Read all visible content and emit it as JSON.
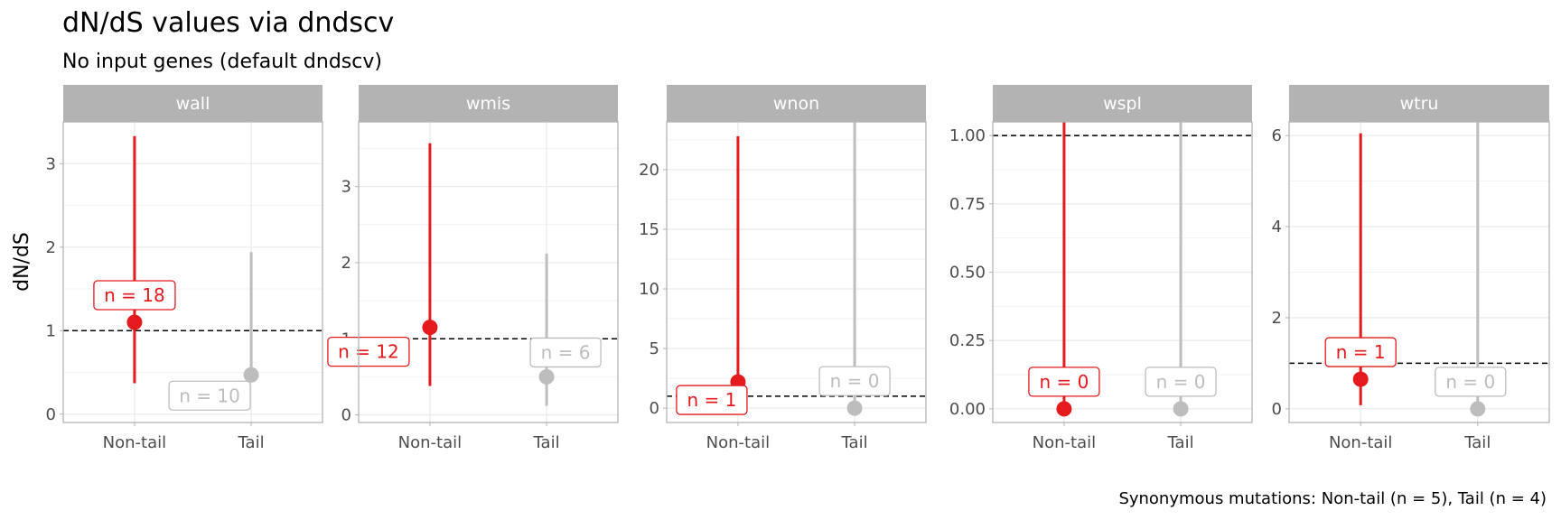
{
  "title": "dN/dS values via dndscv",
  "subtitle": "No input genes (default dndscv)",
  "ylabel": "dN/dS",
  "caption": "Synonymous mutations: Non-tail (n = 5), Tail (n = 4)",
  "colors": {
    "nontail": "#e41a1c",
    "tail": "#bdbdbd",
    "strip": "#b3b3b3",
    "grid": "#ebebeb",
    "border": "#b3b3b3"
  },
  "chart_data": {
    "type": "pointrange",
    "categories": [
      "Non-tail",
      "Tail"
    ],
    "reference_line": 1,
    "panels": [
      {
        "name": "wall",
        "ylim": [
          -0.1,
          3.5
        ],
        "yticks": [
          0,
          1,
          2,
          3
        ],
        "ytick_labels": [
          "0",
          "1",
          "2",
          "3"
        ],
        "points": [
          {
            "group": "Non-tail",
            "value": 1.1,
            "low": 0.37,
            "high": 3.33,
            "label": "n = 18"
          },
          {
            "group": "Tail",
            "value": 0.47,
            "low": 0.47,
            "high": 1.94,
            "label": "n = 10"
          }
        ]
      },
      {
        "name": "wmis",
        "ylim": [
          -0.1,
          3.85
        ],
        "yticks": [
          0,
          1,
          2,
          3
        ],
        "ytick_labels": [
          "0",
          "1",
          "2",
          "3"
        ],
        "points": [
          {
            "group": "Non-tail",
            "value": 1.15,
            "low": 0.38,
            "high": 3.57,
            "label": "n = 12"
          },
          {
            "group": "Tail",
            "value": 0.5,
            "low": 0.12,
            "high": 2.12,
            "label": "n = 6"
          }
        ]
      },
      {
        "name": "wnon",
        "ylim": [
          -1.2,
          24
        ],
        "yticks": [
          0,
          5,
          10,
          15,
          20
        ],
        "ytick_labels": [
          "0",
          "5",
          "10",
          "15",
          "20"
        ],
        "points": [
          {
            "group": "Non-tail",
            "value": 2.2,
            "low": 0.4,
            "high": 22.8,
            "label": "n = 1"
          },
          {
            "group": "Tail",
            "value": 0,
            "low": 0,
            "high": 24,
            "label": "n = 0"
          }
        ]
      },
      {
        "name": "wspl",
        "ylim": [
          -0.05,
          1.05
        ],
        "yticks": [
          0,
          0.25,
          0.5,
          0.75,
          1.0
        ],
        "ytick_labels": [
          "0.00",
          "0.25",
          "0.50",
          "0.75",
          "1.00"
        ],
        "points": [
          {
            "group": "Non-tail",
            "value": 0,
            "low": 0,
            "high": 1.05,
            "label": "n = 0"
          },
          {
            "group": "Tail",
            "value": 0,
            "low": 0,
            "high": 1.05,
            "label": "n = 0"
          }
        ]
      },
      {
        "name": "wtru",
        "ylim": [
          -0.3,
          6.3
        ],
        "yticks": [
          0,
          2,
          4,
          6
        ],
        "ytick_labels": [
          "0",
          "2",
          "4",
          "6"
        ],
        "points": [
          {
            "group": "Non-tail",
            "value": 0.65,
            "low": 0.08,
            "high": 6.05,
            "label": "n = 1"
          },
          {
            "group": "Tail",
            "value": 0,
            "low": 0,
            "high": 6.3,
            "label": "n = 0"
          }
        ]
      }
    ]
  }
}
